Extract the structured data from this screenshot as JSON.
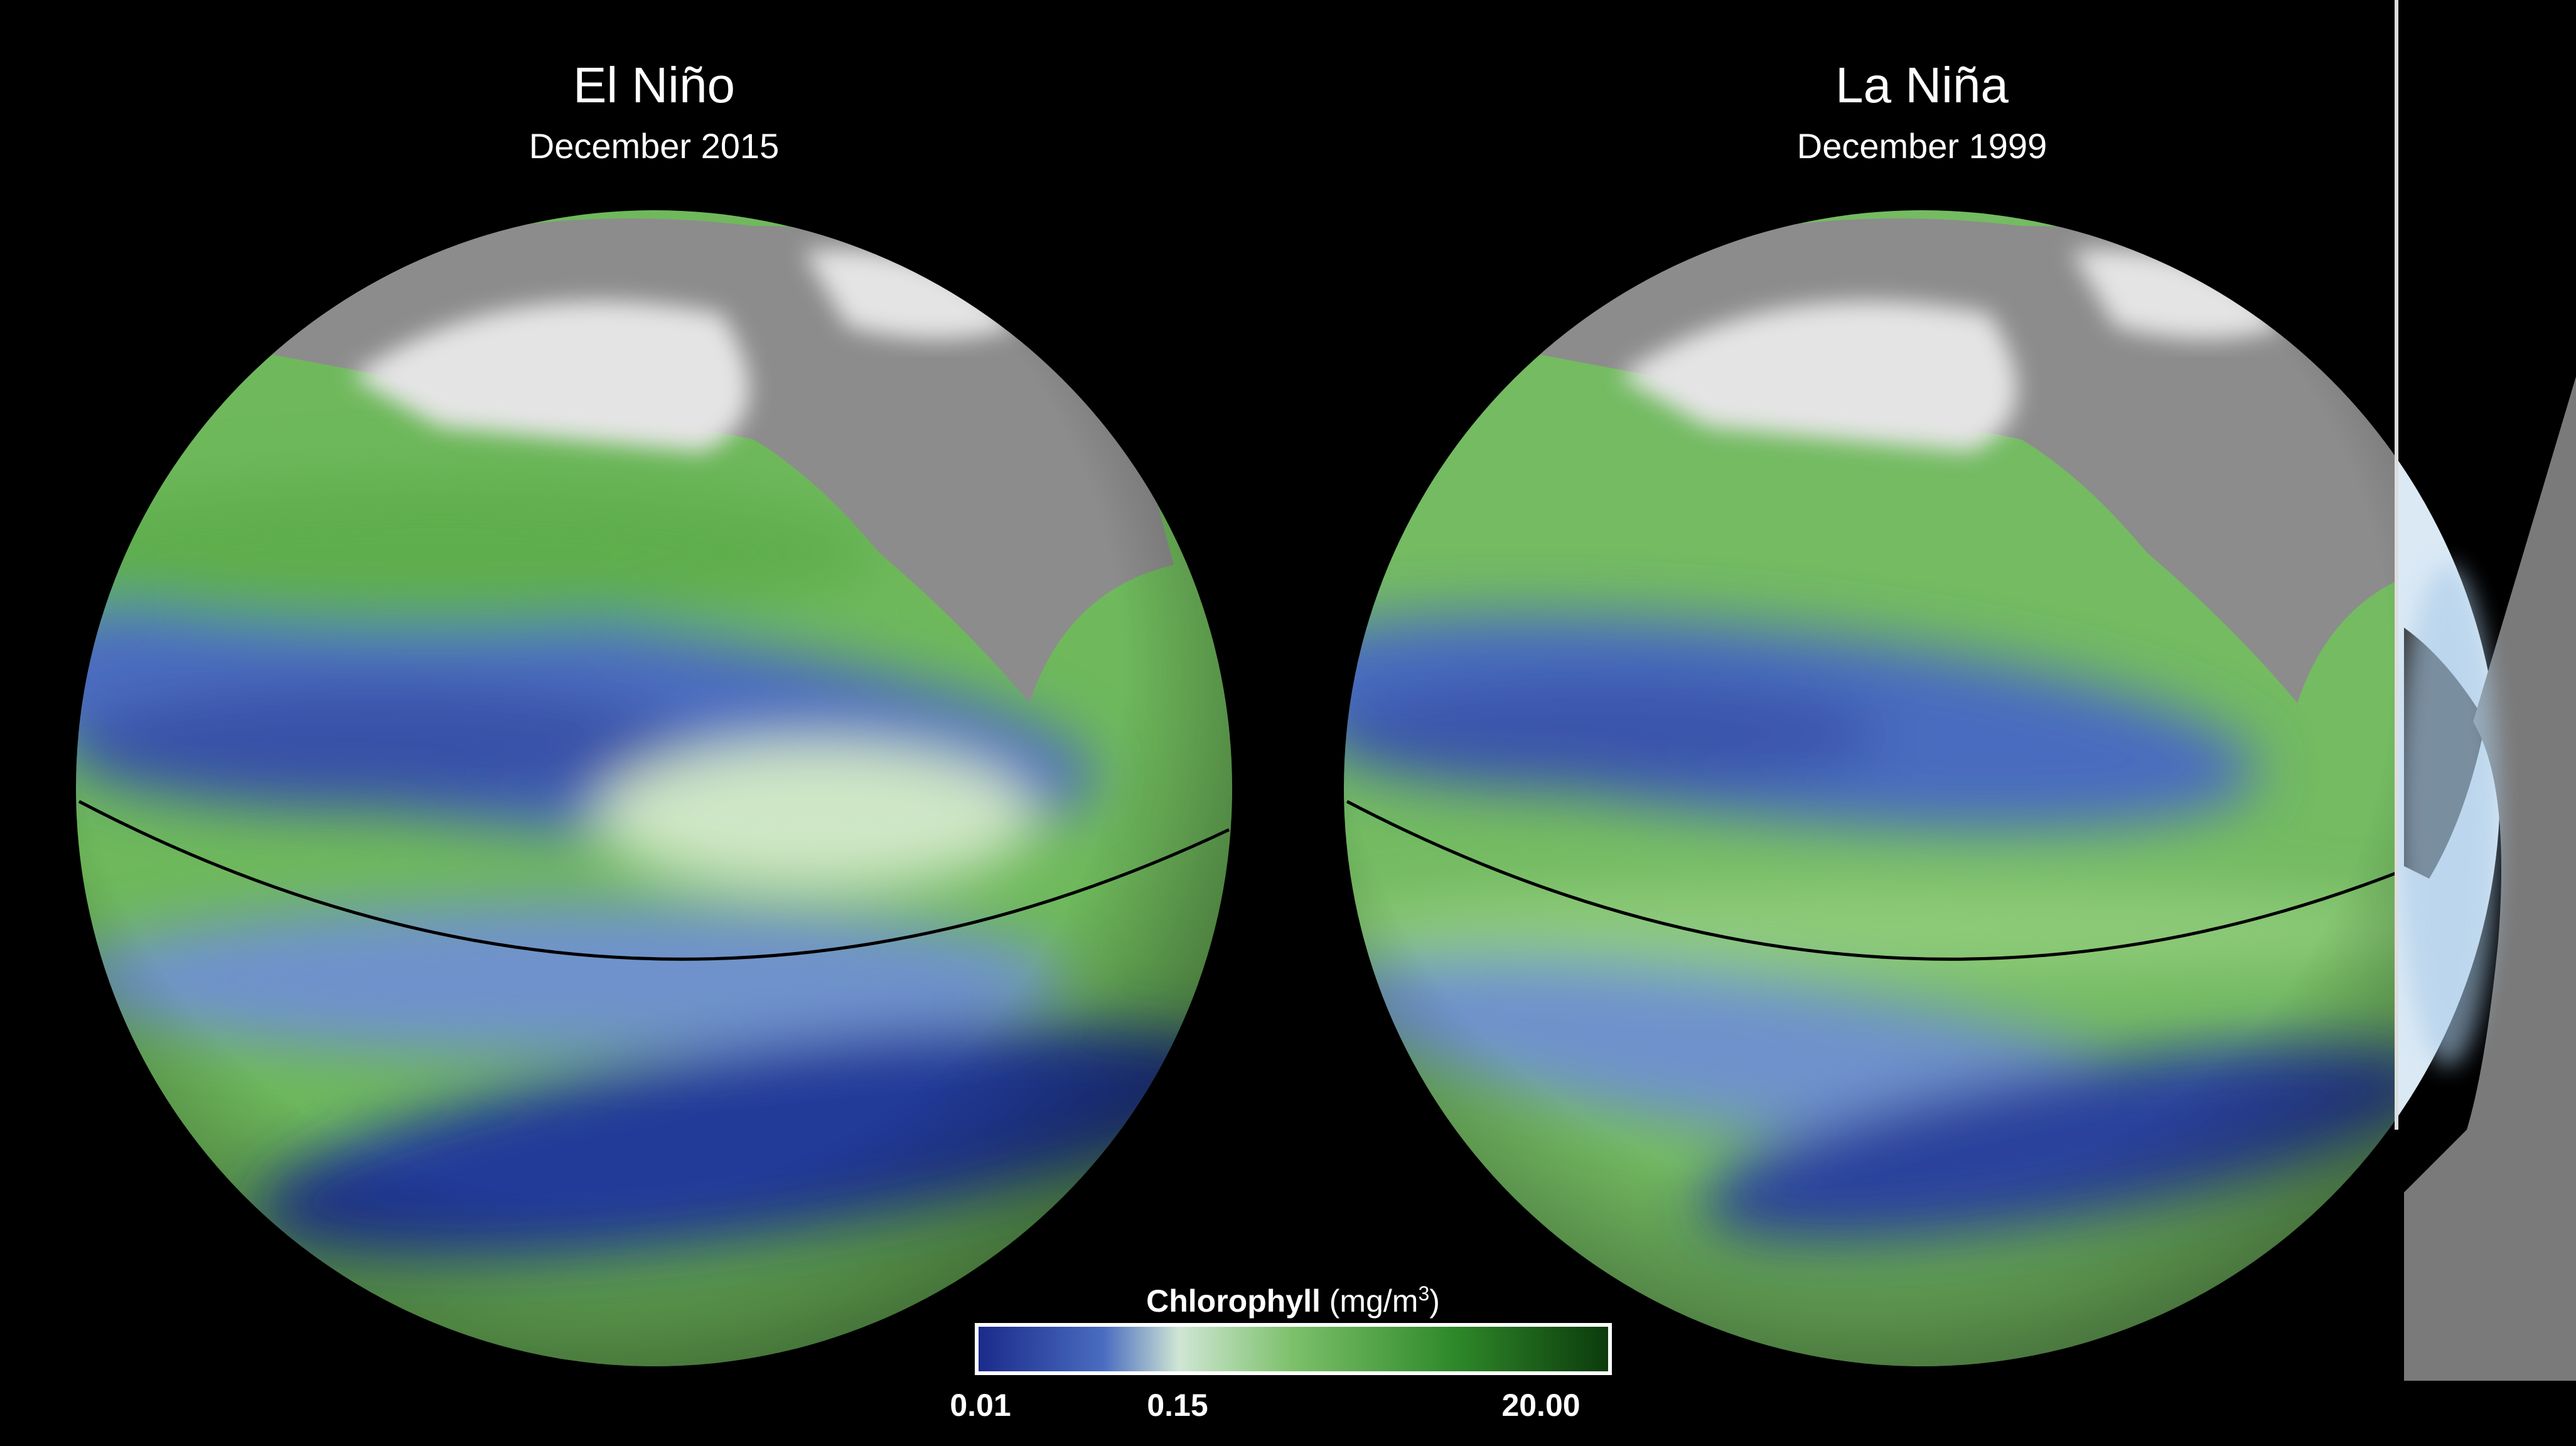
{
  "panels": [
    {
      "title": "El Niño",
      "subtitle": "December 2015"
    },
    {
      "title": "La Niña",
      "subtitle": "December 1999"
    }
  ],
  "legend": {
    "label": "Chlorophyll",
    "unit": "(mg/m",
    "unit_sup": "3",
    "unit_close": ")",
    "ticks": [
      "0.01",
      "0.15",
      "20.00"
    ]
  }
}
